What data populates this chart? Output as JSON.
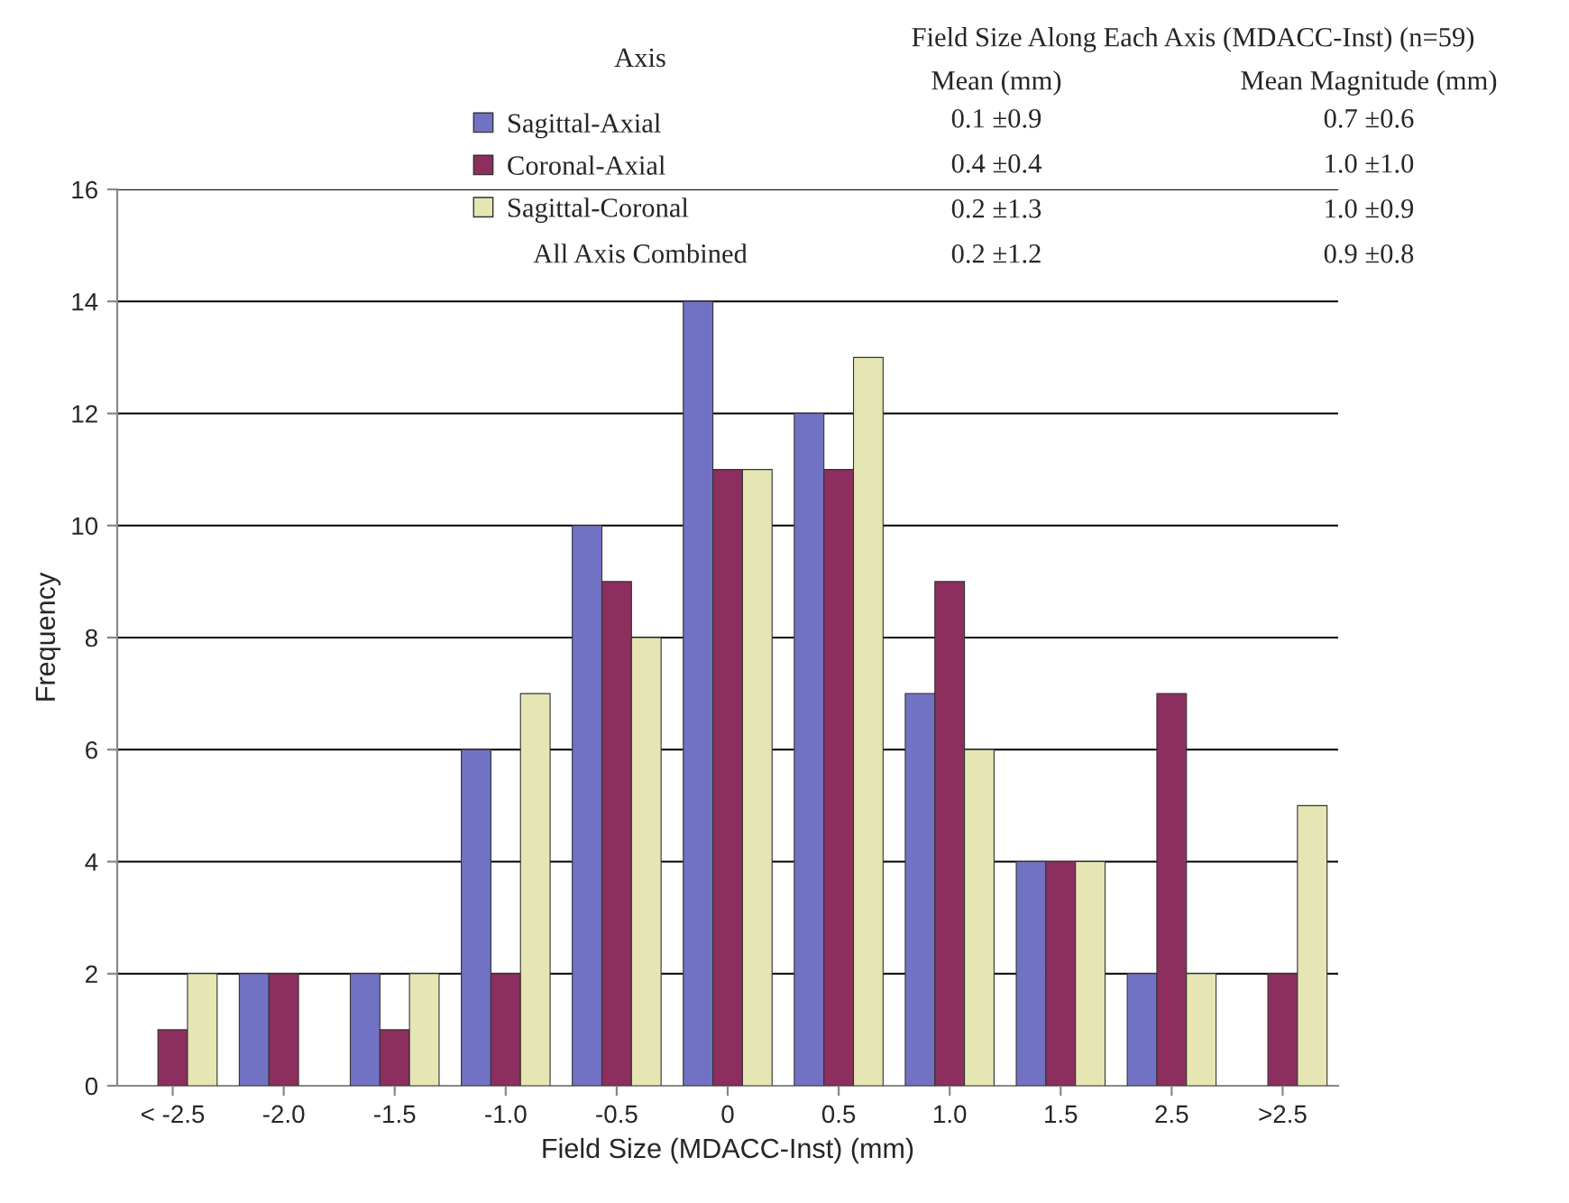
{
  "chart_data": {
    "type": "bar",
    "xlabel": "Field Size (MDACC-Inst) (mm)",
    "ylabel": "Frequency",
    "categories": [
      "< -2.5",
      "-2.0",
      "-1.5",
      "-1.0",
      "-0.5",
      "0",
      "0.5",
      "1.0",
      "1.5",
      "2.5",
      ">2.5"
    ],
    "series": [
      {
        "name": "Sagittal-Axial",
        "color": "#7272c4",
        "values": [
          0,
          2,
          2,
          6,
          10,
          14,
          12,
          7,
          4,
          2,
          0
        ]
      },
      {
        "name": "Coronal-Axial",
        "color": "#8c2f5e",
        "values": [
          1,
          2,
          1,
          2,
          9,
          11,
          11,
          9,
          4,
          7,
          2
        ]
      },
      {
        "name": "Sagittal-Coronal",
        "color": "#e6e6b4",
        "values": [
          2,
          0,
          2,
          7,
          8,
          11,
          13,
          6,
          4,
          2,
          5
        ]
      }
    ],
    "ylim": [
      0,
      16
    ],
    "yticks": [
      0,
      2,
      4,
      6,
      8,
      10,
      12,
      14,
      16
    ],
    "grid": "y",
    "legend": "top",
    "annotations": [
      "Axis",
      "Field Size Along Each Axis (MDACC-Inst) (n=59)",
      "Mean (mm)",
      "Mean Magnitude (mm)",
      "0.1 ±0.9",
      "0.7 ±0.6",
      "0.4 ±0.4",
      "1.0 ±1.0",
      "0.2 ±1.3",
      "1.0 ±0.9",
      "All Axis Combined",
      "0.2 ±1.2",
      "0.9 ±0.8"
    ]
  }
}
